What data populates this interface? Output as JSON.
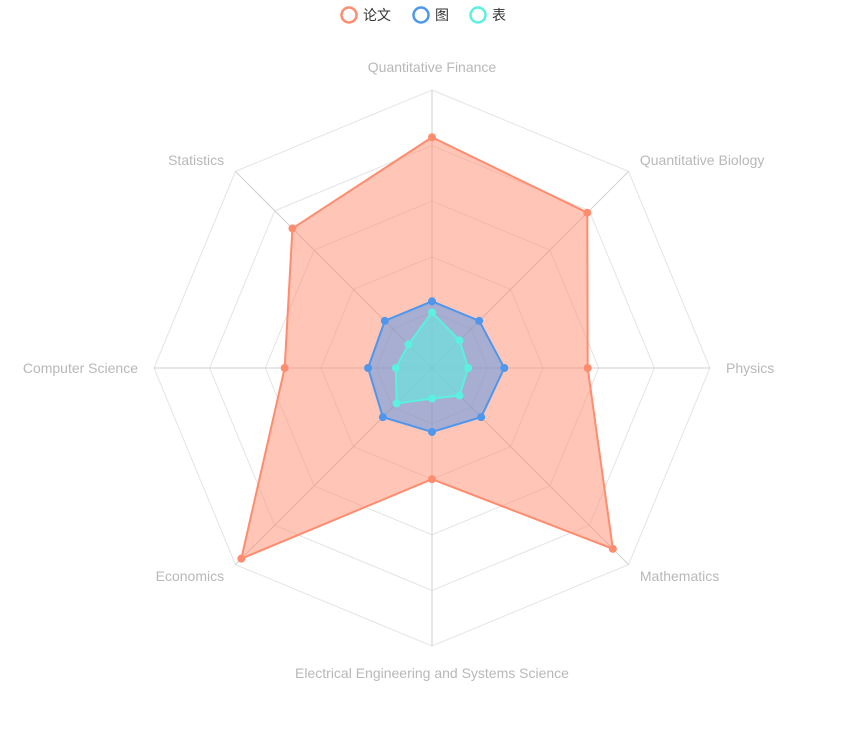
{
  "chart_data": {
    "type": "radar",
    "title": "",
    "indicators": [
      "Quantitative Finance",
      "Quantitative Biology",
      "Physics",
      "Mathematics",
      "Electrical Engineering and Systems Science",
      "Economics",
      "Computer Science",
      "Statistics"
    ],
    "max": 1.0,
    "rings": 5,
    "legend_position": "top-center",
    "series": [
      {
        "name": "论文",
        "color": "#ff8c6e",
        "fill": "rgba(255,140,110,0.5)",
        "values": [
          0.83,
          0.79,
          0.56,
          0.92,
          0.4,
          0.97,
          0.53,
          0.71
        ]
      },
      {
        "name": "图",
        "color": "#4f97ec",
        "fill": "rgba(79,151,236,0.5)",
        "values": [
          0.24,
          0.24,
          0.26,
          0.25,
          0.23,
          0.25,
          0.23,
          0.24
        ]
      },
      {
        "name": "表",
        "color": "#5cf0e0",
        "fill": "rgba(92,240,224,0.55)",
        "values": [
          0.2,
          0.14,
          0.13,
          0.14,
          0.11,
          0.18,
          0.13,
          0.12
        ]
      }
    ]
  }
}
